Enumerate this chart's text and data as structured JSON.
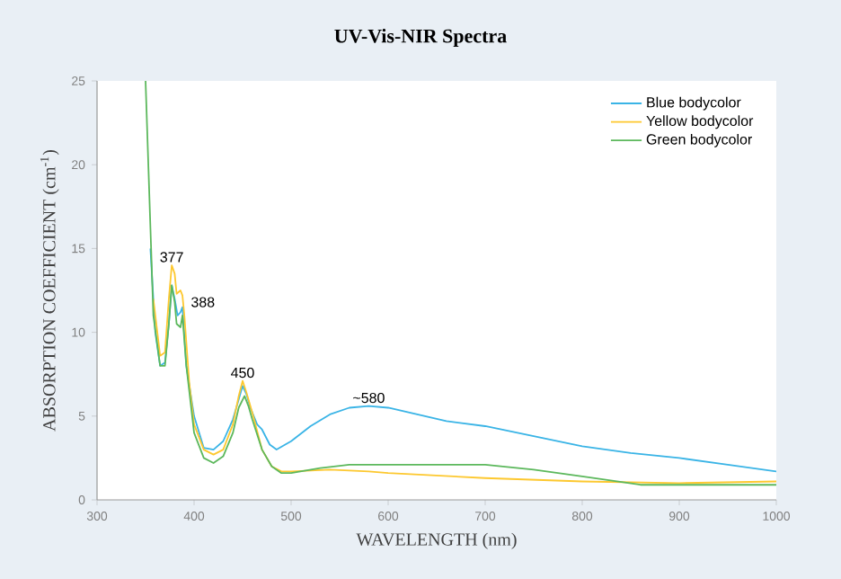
{
  "chart_data": {
    "type": "line",
    "title": "UV-Vis-NIR Spectra",
    "xlabel": "WAVELENGTH (nm)",
    "ylabel": "ABSORPTION COEFFICIENT (cm$^{-1}$)",
    "xlim": [
      300,
      1000
    ],
    "ylim": [
      0,
      25
    ],
    "xticks": [
      300,
      400,
      500,
      600,
      700,
      800,
      900,
      1000
    ],
    "yticks": [
      0,
      5,
      10,
      15,
      20,
      25
    ],
    "legend": "top right",
    "grid": false,
    "annotations": [
      {
        "text": "377",
        "x": 377,
        "y": 14
      },
      {
        "text": "388",
        "x": 388,
        "y": 11.8
      },
      {
        "text": "450",
        "x": 450,
        "y": 7.1
      },
      {
        "text": "~580",
        "x": 580,
        "y": 5.6
      }
    ],
    "series": [
      {
        "name": "Blue bodycolor",
        "color": "#3ab4e6",
        "x": [
          355,
          360,
          365,
          370,
          374,
          377,
          380,
          383,
          386,
          388,
          392,
          400,
          410,
          420,
          430,
          440,
          446,
          450,
          454,
          458,
          465,
          470,
          478,
          485,
          500,
          520,
          540,
          560,
          580,
          600,
          630,
          660,
          700,
          750,
          800,
          850,
          900,
          950,
          1000
        ],
        "values": [
          15,
          10,
          8,
          8.2,
          10.5,
          12.8,
          12,
          11,
          11.2,
          11.5,
          8,
          5,
          3.1,
          3,
          3.5,
          4.8,
          6,
          6.8,
          6.3,
          5.5,
          4.5,
          4.2,
          3.3,
          3,
          3.5,
          4.4,
          5.1,
          5.5,
          5.6,
          5.5,
          5.1,
          4.7,
          4.4,
          3.8,
          3.2,
          2.8,
          2.5,
          2.1,
          1.7
        ]
      },
      {
        "name": "Yellow bodycolor",
        "color": "#fdc82f",
        "x": [
          358,
          365,
          370,
          374,
          377,
          380,
          382,
          386,
          388,
          390,
          395,
          400,
          410,
          420,
          430,
          440,
          446,
          450,
          454,
          460,
          470,
          480,
          490,
          500,
          540,
          580,
          600,
          700,
          800,
          900,
          1000
        ],
        "values": [
          12,
          8.6,
          8.8,
          12,
          14,
          13.5,
          12.3,
          12.5,
          12.2,
          11,
          7,
          4.5,
          3,
          2.7,
          3,
          4.5,
          6.2,
          7.1,
          6.4,
          5.2,
          3,
          2,
          1.7,
          1.7,
          1.8,
          1.7,
          1.6,
          1.3,
          1.1,
          1,
          1.1
        ]
      },
      {
        "name": "Green bodycolor",
        "color": "#5cb85c",
        "x": [
          350,
          358,
          365,
          370,
          374,
          377,
          380,
          382,
          386,
          388,
          392,
          400,
          410,
          420,
          430,
          440,
          446,
          452,
          456,
          460,
          470,
          480,
          490,
          500,
          530,
          560,
          600,
          650,
          700,
          750,
          800,
          860,
          900,
          1000
        ],
        "values": [
          25,
          11,
          8,
          8,
          10.5,
          12.8,
          11.8,
          10.5,
          10.3,
          11,
          8,
          4,
          2.5,
          2.2,
          2.6,
          4,
          5.5,
          6.2,
          5.6,
          4.8,
          3,
          2,
          1.6,
          1.6,
          1.9,
          2.1,
          2.1,
          2.1,
          2.1,
          1.8,
          1.4,
          0.9,
          0.9,
          0.9
        ]
      }
    ]
  }
}
